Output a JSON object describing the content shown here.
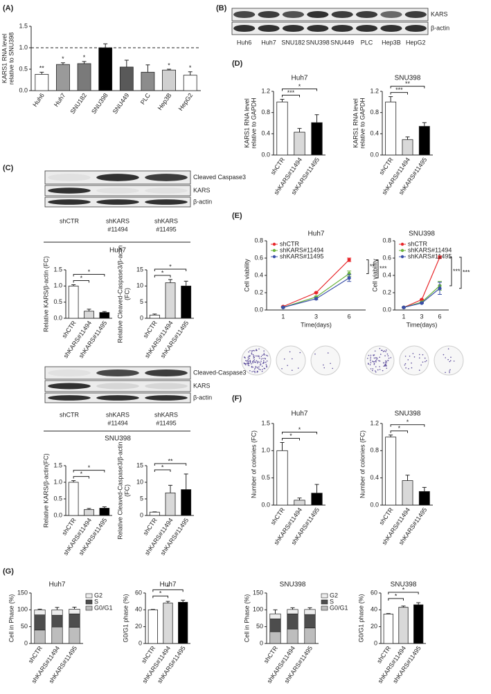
{
  "panel_labels": [
    "(A)",
    "(B)",
    "(C)",
    "(D)",
    "(E)",
    "(F)",
    "(G)"
  ],
  "blots": [
    {
      "rows": [
        "KARS",
        "β-actin"
      ],
      "lanes": [
        [
          "Huh6"
        ],
        [
          "Huh7"
        ],
        [
          "SNU182"
        ],
        [
          "SNU398"
        ],
        [
          "SNU449"
        ],
        [
          "PLC"
        ],
        [
          "Hep3B"
        ],
        [
          "HepG2"
        ]
      ]
    },
    {
      "rows": [
        "Cleaved Caspase3",
        "KARS",
        "β-actin"
      ],
      "lanes": [
        [
          "shCTR"
        ],
        [
          "shKARS",
          "#11494"
        ],
        [
          "shKARS",
          "#11495"
        ]
      ],
      "cell_line": "Huh7"
    },
    {
      "rows": [
        "Cleaved-Caspase3",
        "KARS",
        "β-actin"
      ],
      "lanes": [
        [
          "shCTR"
        ],
        [
          "shKARS",
          "#11494"
        ],
        [
          "shKARS",
          "#11495"
        ]
      ],
      "cell_line": "SNU398"
    }
  ],
  "chart_data": [
    {
      "type": "bar",
      "ylabel": [
        "KARS1 RNA level",
        "relative to SNU398"
      ],
      "categories": [
        "Huh6",
        "Huh7",
        "SNU182",
        "SNU398",
        "SNU449",
        "PLC",
        "Hep3B",
        "HepG2"
      ],
      "values": [
        0.38,
        0.61,
        0.63,
        1.0,
        0.55,
        0.43,
        0.48,
        0.36
      ],
      "errors": [
        0.05,
        0.04,
        0.05,
        0.09,
        0.16,
        0.17,
        0.02,
        0.08
      ],
      "colors": [
        "#ffffff",
        "#9a9a9a",
        "#7a7a7a",
        "#000000",
        "#595959",
        "#8c8c8c",
        "#d0d0d0",
        "#ffffff"
      ],
      "annotations": [
        "**",
        "*",
        "*",
        null,
        null,
        null,
        "*",
        "*"
      ],
      "reference_line": 1,
      "ylim": [
        0,
        1.5
      ],
      "yticks": [
        {
          "value": 0,
          "label": "0.0"
        },
        0.5,
        {
          "value": 1,
          "label": "1.0"
        },
        1.5
      ]
    },
    {
      "type": "bar",
      "ylabel": [
        "Relative KARS/β-actin (FC)"
      ],
      "categories": [
        "shCTR",
        "shKARS#11494",
        "shKARS#11495"
      ],
      "values": [
        1.0,
        0.22,
        0.18
      ],
      "errors": [
        0.04,
        0.06,
        0.03
      ],
      "colors": [
        "#ffffff",
        "#d9d9d9",
        "#000000"
      ],
      "significance": [
        {
          "pair": [
            "shCTR",
            "shKARS#11494"
          ],
          "label": "*"
        },
        {
          "pair": [
            "shCTR",
            "shKARS#11495"
          ],
          "label": "*"
        }
      ],
      "ylim": [
        0,
        1.5
      ],
      "yticks": [
        {
          "value": 0,
          "label": "0.0"
        },
        0.5,
        {
          "value": 1,
          "label": "1.0"
        },
        1.5
      ]
    },
    {
      "type": "bar",
      "ylabel": [
        "Relative Cleaved-Caspase3/β-actin",
        "(FC)"
      ],
      "categories": [
        "shCTR",
        "shKARS#11494",
        "shKARS#11495"
      ],
      "values": [
        1,
        11,
        10
      ],
      "errors": [
        0.3,
        1,
        1.5
      ],
      "colors": [
        "#ffffff",
        "#d9d9d9",
        "#000000"
      ],
      "significance": [
        {
          "pair": [
            "shCTR",
            "shKARS#11494"
          ],
          "label": "*"
        },
        {
          "pair": [
            "shCTR",
            "shKARS#11495"
          ],
          "label": "*"
        }
      ],
      "ylim": [
        0,
        15
      ],
      "yticks": [
        0,
        5,
        10,
        15
      ]
    },
    {
      "type": "bar",
      "ylabel": [
        "Relative KARS/β-actin(FC)"
      ],
      "categories": [
        "shCTR",
        "shKARS#11494",
        "shKARS#11495"
      ],
      "values": [
        1.0,
        0.18,
        0.22
      ],
      "errors": [
        0.05,
        0.03,
        0.04
      ],
      "colors": [
        "#ffffff",
        "#d9d9d9",
        "#000000"
      ],
      "significance": [
        {
          "pair": [
            "shCTR",
            "shKARS#11494"
          ],
          "label": "*"
        },
        {
          "pair": [
            "shCTR",
            "shKARS#11495"
          ],
          "label": "*"
        }
      ],
      "ylim": [
        0,
        1.5
      ],
      "yticks": [
        {
          "value": 0,
          "label": "0.0"
        },
        0.5,
        {
          "value": 1,
          "label": "1.0"
        },
        1.5
      ]
    },
    {
      "type": "bar",
      "ylabel": [
        "Relative Cleaved-Caspase3/β-actin",
        "(FC)"
      ],
      "categories": [
        "shCTR",
        "shKARS#11494",
        "shKARS#11495"
      ],
      "values": [
        1,
        6.8,
        7.8
      ],
      "errors": [
        0.1,
        2.3,
        4.7
      ],
      "colors": [
        "#ffffff",
        "#d9d9d9",
        "#000000"
      ],
      "significance": [
        {
          "pair": [
            "shCTR",
            "shKARS#11494"
          ],
          "label": "*"
        },
        {
          "pair": [
            "shCTR",
            "shKARS#11495"
          ],
          "label": "**"
        }
      ],
      "ylim": [
        0,
        15
      ],
      "yticks": [
        0,
        5,
        10,
        15
      ]
    },
    {
      "type": "bar",
      "title": "Huh7",
      "ylabel": [
        "KARS1 RNA level",
        "relative to GAPDH"
      ],
      "categories": [
        "shCTR",
        "shKARS#11494",
        "shKARS#11495"
      ],
      "values": [
        1.0,
        0.43,
        0.61
      ],
      "errors": [
        0.05,
        0.07,
        0.15
      ],
      "colors": [
        "#ffffff",
        "#d9d9d9",
        "#000000"
      ],
      "significance": [
        {
          "pair": [
            "shCTR",
            "shKARS#11494"
          ],
          "label": "***"
        },
        {
          "pair": [
            "shCTR",
            "shKARS#11495"
          ],
          "label": "*"
        }
      ],
      "ylim": [
        0,
        1.2
      ],
      "yticks": [
        {
          "value": 0,
          "label": "0.0"
        },
        0.4,
        0.8,
        1.2
      ]
    },
    {
      "type": "bar",
      "title": "SNU398",
      "ylabel": [
        "KARS1 RNA level",
        "relative to GAPDH"
      ],
      "categories": [
        "shCTR",
        "shKARS#11494",
        "shKARS#11495"
      ],
      "values": [
        1.0,
        0.29,
        0.54
      ],
      "errors": [
        0.1,
        0.05,
        0.07
      ],
      "colors": [
        "#ffffff",
        "#d9d9d9",
        "#000000"
      ],
      "significance": [
        {
          "pair": [
            "shCTR",
            "shKARS#11494"
          ],
          "label": "***"
        },
        {
          "pair": [
            "shCTR",
            "shKARS#11495"
          ],
          "label": "**"
        }
      ],
      "ylim": [
        0,
        1.2
      ],
      "yticks": [
        {
          "value": 0,
          "label": "0.0"
        },
        0.4,
        0.8,
        1.2
      ]
    },
    {
      "type": "line",
      "title": "Huh7",
      "ylabel": [
        "Cell viability"
      ],
      "xlabel": "Time(days)",
      "categories": [
        "1",
        "3",
        "6"
      ],
      "series": [
        {
          "name": "shCTR",
          "color": "#e8262a",
          "values": [
            0.04,
            0.2,
            0.58
          ],
          "errors": [
            0.005,
            0.005,
            0.02
          ]
        },
        {
          "name": "shKARS#11494",
          "color": "#6ab33c",
          "values": [
            0.03,
            0.15,
            0.42
          ],
          "errors": [
            0.005,
            0.01,
            0.03
          ]
        },
        {
          "name": "shKARS#11495",
          "color": "#3a4fa8",
          "values": [
            0.03,
            0.13,
            0.37
          ],
          "errors": [
            0.005,
            0.01,
            0.04
          ]
        }
      ],
      "significance": [
        {
          "pair": [
            "shCTR",
            "shKARS#11494"
          ],
          "label": "**"
        },
        {
          "pair": [
            "shCTR",
            "shKARS#11495"
          ],
          "label": "***"
        }
      ],
      "ylim": [
        0,
        0.8
      ],
      "yticks": [
        {
          "value": 0,
          "label": "0.0"
        },
        0.2,
        0.4,
        0.6,
        0.8
      ]
    },
    {
      "type": "line",
      "title": "SNU398",
      "ylabel": [
        "Cell viability"
      ],
      "xlabel": "Time(days)",
      "categories": [
        "1",
        "3",
        "6"
      ],
      "series": [
        {
          "name": "shCTR",
          "color": "#e8262a",
          "values": [
            0.03,
            0.12,
            0.61
          ],
          "errors": [
            0.005,
            0.005,
            0.015
          ]
        },
        {
          "name": "shKARS#11494",
          "color": "#6ab33c",
          "values": [
            0.03,
            0.09,
            0.28
          ],
          "errors": [
            0.005,
            0.005,
            0.05
          ]
        },
        {
          "name": "shKARS#11495",
          "color": "#3a4fa8",
          "values": [
            0.03,
            0.08,
            0.25
          ],
          "errors": [
            0.005,
            0.005,
            0.07
          ]
        }
      ],
      "significance": [
        {
          "pair": [
            "shCTR",
            "shKARS#11494"
          ],
          "label": "***"
        },
        {
          "pair": [
            "shCTR",
            "shKARS#11495"
          ],
          "label": "***"
        }
      ],
      "ylim": [
        0,
        0.8
      ],
      "yticks": [
        {
          "value": 0,
          "label": "0.0"
        },
        0.2,
        0.4,
        0.6,
        0.8
      ]
    },
    {
      "type": "bar",
      "title": "Huh7",
      "ylabel": [
        "Number of colonies (FC)"
      ],
      "categories": [
        "shCTR",
        "shKARS#11494",
        "shKARS#11495"
      ],
      "values": [
        1.0,
        0.09,
        0.22
      ],
      "errors": [
        0.15,
        0.04,
        0.16
      ],
      "colors": [
        "#ffffff",
        "#d9d9d9",
        "#000000"
      ],
      "significance": [
        {
          "pair": [
            "shCTR",
            "shKARS#11494"
          ],
          "label": "*"
        },
        {
          "pair": [
            "shCTR",
            "shKARS#11495"
          ],
          "label": "*"
        }
      ],
      "ylim": [
        0,
        1.5
      ],
      "yticks": [
        {
          "value": 0,
          "label": "0.0"
        },
        0.5,
        {
          "value": 1,
          "label": "1.0"
        },
        1.5
      ]
    },
    {
      "type": "bar",
      "title": "SNU398",
      "ylabel": [
        "Number of colonies (FC)"
      ],
      "categories": [
        "shCTR",
        "shKARS#11494",
        "shKARS#11495"
      ],
      "values": [
        1.0,
        0.36,
        0.2
      ],
      "errors": [
        0.03,
        0.08,
        0.06
      ],
      "colors": [
        "#ffffff",
        "#d9d9d9",
        "#000000"
      ],
      "significance": [
        {
          "pair": [
            "shCTR",
            "shKARS#11494"
          ],
          "label": "*"
        },
        {
          "pair": [
            "shCTR",
            "shKARS#11495"
          ],
          "label": "*"
        }
      ],
      "ylim": [
        0,
        1.2
      ],
      "yticks": [
        {
          "value": 0,
          "label": "0.0"
        },
        0.4,
        0.8,
        1.2
      ]
    },
    {
      "type": "stacked_bar",
      "title": "Huh7",
      "ylabel": [
        "Cell in Phase (%)"
      ],
      "categories": [
        "shCTR",
        "shKARS#11494",
        "shKARS#11495"
      ],
      "series": [
        {
          "name": "G0/G1",
          "color": "#bdbdbd",
          "values": [
            40,
            49,
            48
          ]
        },
        {
          "name": "S",
          "color": "#4d4d4d",
          "values": [
            45,
            35,
            40
          ]
        },
        {
          "name": "G2",
          "color": "#ececec",
          "values": [
            15,
            16,
            14
          ],
          "errors": [
            2,
            7,
            6
          ]
        }
      ],
      "ylim": [
        0,
        150
      ],
      "yticks": [
        0,
        50,
        100,
        150
      ]
    },
    {
      "type": "bar",
      "title": "Huh7",
      "ylabel": [
        "G0/G1 phase (%)"
      ],
      "categories": [
        "shCTR",
        "shKARS#11494",
        "shKARS#11495"
      ],
      "values": [
        40,
        48,
        49
      ],
      "errors": [
        0.5,
        2,
        2.5
      ],
      "colors": [
        "#ffffff",
        "#d9d9d9",
        "#000000"
      ],
      "significance": [
        {
          "pair": [
            "shCTR",
            "shKARS#11494"
          ],
          "label": "*"
        },
        {
          "pair": [
            "shCTR",
            "shKARS#11495"
          ],
          "label": "*"
        }
      ],
      "ylim": [
        0,
        60
      ],
      "yticks": [
        0,
        20,
        40,
        60
      ]
    },
    {
      "type": "stacked_bar",
      "title": "SNU398",
      "ylabel": [
        "Cell in Phase (%)"
      ],
      "categories": [
        "shCTR",
        "shKARS#11494",
        "shKARS#11495"
      ],
      "series": [
        {
          "name": "G0/G1",
          "color": "#bdbdbd",
          "values": [
            35,
            43,
            46
          ]
        },
        {
          "name": "S",
          "color": "#4d4d4d",
          "values": [
            38,
            45,
            40
          ]
        },
        {
          "name": "G2",
          "color": "#ececec",
          "values": [
            15,
            13,
            15
          ],
          "errors": [
            12,
            5,
            5
          ]
        }
      ],
      "ylim": [
        0,
        150
      ],
      "yticks": [
        0,
        50,
        100,
        150
      ]
    },
    {
      "type": "bar",
      "title": "SNU398",
      "ylabel": [
        "G0/G1 phase (%)"
      ],
      "categories": [
        "shCTR",
        "shKARS#11494",
        "shKARS#11495"
      ],
      "values": [
        35,
        43,
        46
      ],
      "errors": [
        0.5,
        1.5,
        2.5
      ],
      "colors": [
        "#ffffff",
        "#d9d9d9",
        "#000000"
      ],
      "significance": [
        {
          "pair": [
            "shCTR",
            "shKARS#11494"
          ],
          "label": "*"
        },
        {
          "pair": [
            "shCTR",
            "shKARS#11495"
          ],
          "label": "*"
        }
      ],
      "ylim": [
        0,
        60
      ],
      "yticks": [
        0,
        20,
        40,
        60
      ]
    }
  ]
}
